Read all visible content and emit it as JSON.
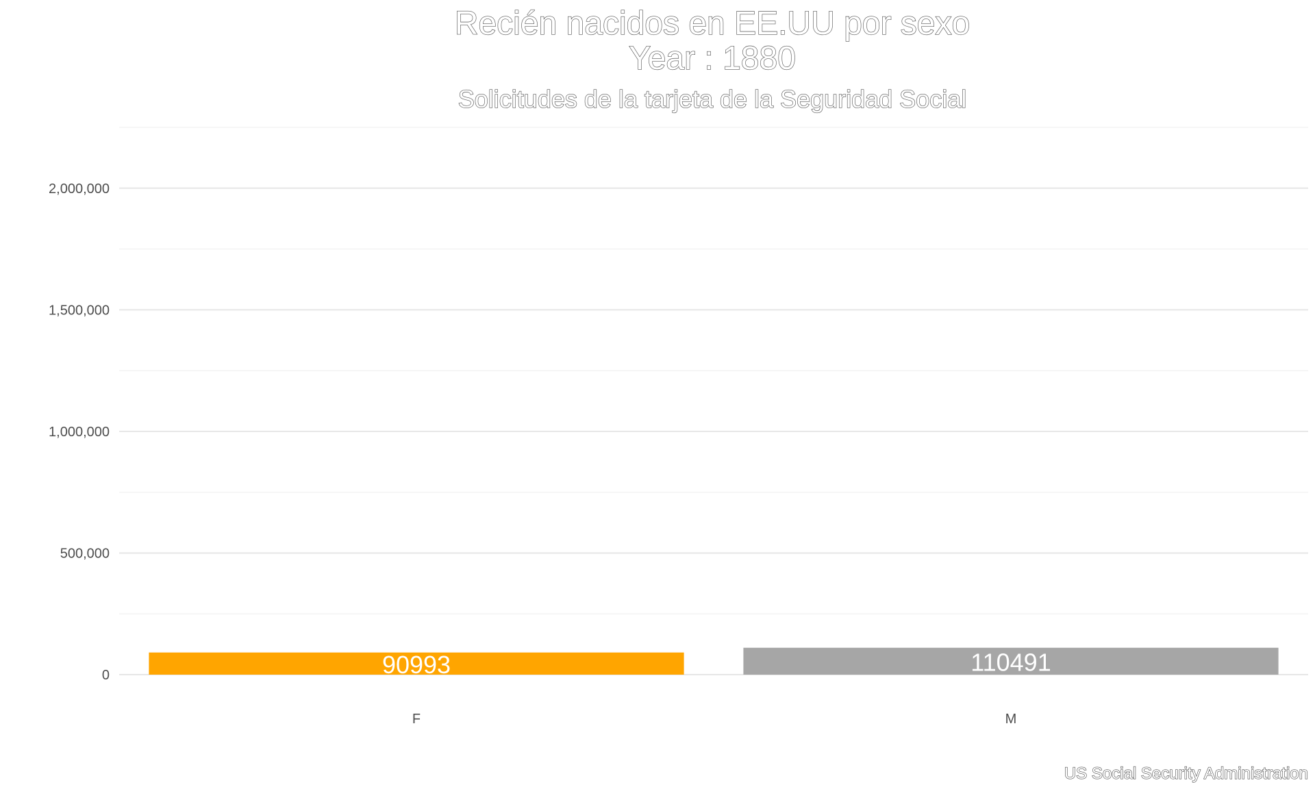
{
  "chart_data": {
    "type": "bar",
    "title": "Recién nacidos en EE.UU por sexo",
    "title_line2": "Year : 1880",
    "subtitle": "Solicitudes de la tarjeta de la Seguridad Social",
    "caption": "US Social Security Administration",
    "categories": [
      "F",
      "M"
    ],
    "values": [
      90993,
      110491
    ],
    "value_labels": [
      "90993",
      "110491"
    ],
    "colors": [
      "#ffa500",
      "#a6a6a6"
    ],
    "ylim": [
      0,
      2250000
    ],
    "yticks": [
      0,
      500000,
      1000000,
      1500000,
      2000000
    ],
    "ytick_labels": [
      "0",
      "500,000",
      "1,000,000",
      "1,500,000",
      "2,000,000"
    ],
    "grid": true,
    "legend": "none"
  }
}
